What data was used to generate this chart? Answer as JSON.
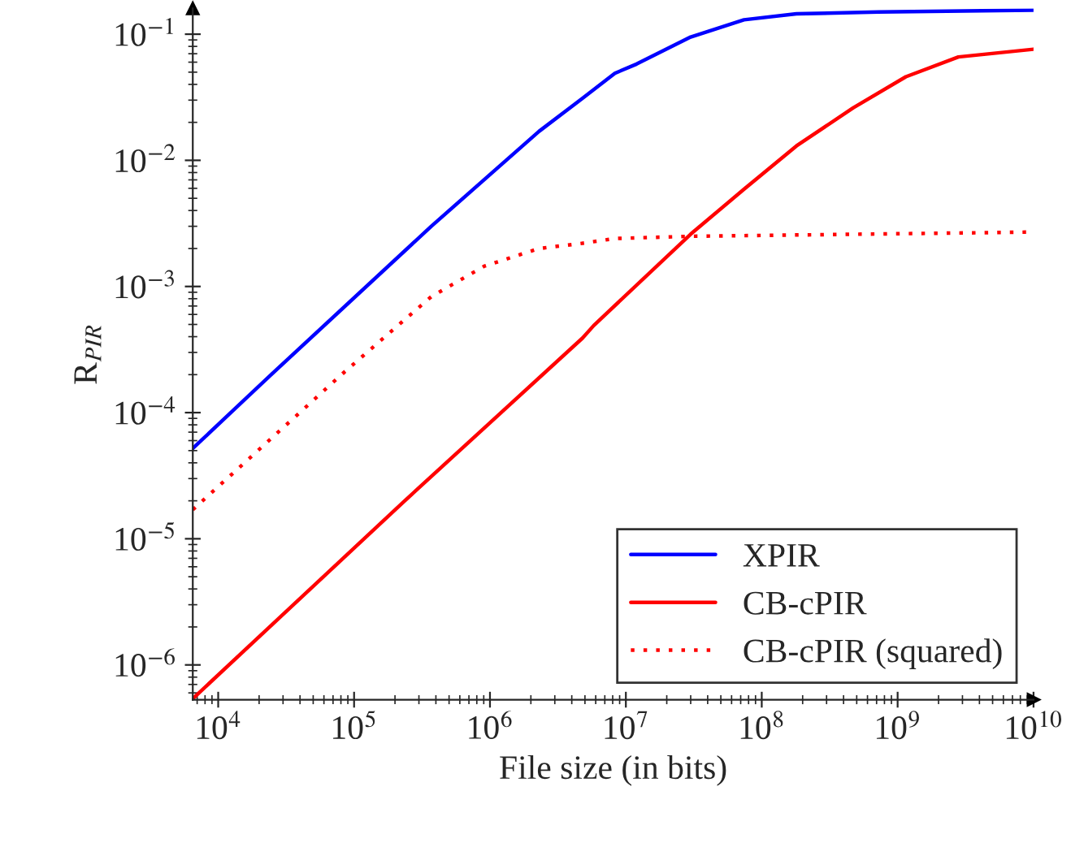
{
  "chart_data": {
    "type": "line",
    "xlabel": "File size (in bits)",
    "ylabel": "R$_{PIR}$",
    "log": "xy",
    "grid": false,
    "legend": "bottom right",
    "marker": "none",
    "xlim": [
      6500,
      10000000000
    ],
    "ylim": [
      5.3e-07,
      0.16
    ],
    "xticks": [
      {
        "value": 10000,
        "label": "10$^{4}$"
      },
      {
        "value": 100000,
        "label": "10$^{5}$"
      },
      {
        "value": 1000000,
        "label": "10$^{6}$"
      },
      {
        "value": 10000000,
        "label": "10$^{7}$"
      },
      {
        "value": 100000000,
        "label": "10$^{8}$"
      },
      {
        "value": 1000000000,
        "label": "10$^{9}$"
      },
      {
        "value": 10000000000,
        "label": "10$^{10}$"
      }
    ],
    "yticks": [
      {
        "value": 1e-06,
        "label": "10$^{−6}$"
      },
      {
        "value": 1e-05,
        "label": "10$^{−5}$"
      },
      {
        "value": 0.0001,
        "label": "10$^{−4}$"
      },
      {
        "value": 0.001,
        "label": "10$^{−3}$"
      },
      {
        "value": 0.01,
        "label": "10$^{−2}$"
      },
      {
        "value": 0.1,
        "label": "10$^{−1}$"
      }
    ],
    "series": [
      {
        "name": "XPIR",
        "color": "#0000ff",
        "line_style": "solid",
        "x": [
          6500,
          24500,
          370000,
          2300000,
          4800000,
          8300000,
          12000000,
          30000000,
          74000000,
          180000000,
          720000000,
          10000000000
        ],
        "values": [
          5.2e-05,
          0.0002,
          0.003,
          0.017,
          0.031,
          0.049,
          0.058,
          0.095,
          0.13,
          0.145,
          0.15,
          0.155
        ]
      },
      {
        "name": "CB-cPIR",
        "color": "#ff0000",
        "line_style": "solid",
        "x": [
          6500,
          230000,
          4800000,
          5800000,
          30000000,
          74000000,
          180000000,
          470000000,
          1150000000,
          2800000000,
          10000000000
        ],
        "values": [
          5.4e-07,
          1.95e-05,
          0.00039,
          0.00049,
          0.0026,
          0.0059,
          0.013,
          0.026,
          0.046,
          0.066,
          0.076
        ]
      },
      {
        "name": "CB-cPIR (squared)",
        "color": "#ff0000",
        "line_style": "dotted",
        "x": [
          6500,
          85000,
          210000,
          370000,
          910000,
          2300000,
          4800000,
          8300000,
          30000000,
          10000000000
        ],
        "values": [
          1.7e-05,
          0.00021,
          0.00049,
          0.00083,
          0.00145,
          0.002,
          0.0022,
          0.0024,
          0.0025,
          0.0027
        ]
      }
    ]
  }
}
